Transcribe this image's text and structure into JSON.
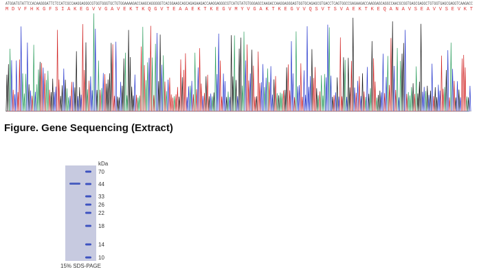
{
  "sequencing": {
    "nucleotides": "ATGGATGTATTCCACAAGGGATTCTCCATCGCCAAGGAGGGCGTGGTGGGTGCTGTGGAAAAGACCAAGCAGGGGGTCACGGAAGCAGCAGAGAAGACCAAGGAGGGCGTCATGTATGTGGGAGCCAAGACCAAGGAGGGAGTGGTGCAGAGCGTGACCTCAGTGGCCGAGAAGACCAAGGAGCAGGCCAACGCGGTGAGCGAGGCTGTGGTGAGCGAGGTCAAGACC",
    "amino_acids": "M D V F H K G F S I A K E G V V G A V E K T K Q G V T E A A E K T K E G V M Y V G A K T K E G V V Q S V T S V A E K T K E Q A N A V S E A V V S E V K T",
    "caption": "Figure. Gene Sequencing (Extract)"
  },
  "gel": {
    "unit": "kDa",
    "markers": [
      "70",
      "44",
      "33",
      "26",
      "22",
      "18",
      "14",
      "10"
    ],
    "caption": "15% SDS-PAGE"
  }
}
